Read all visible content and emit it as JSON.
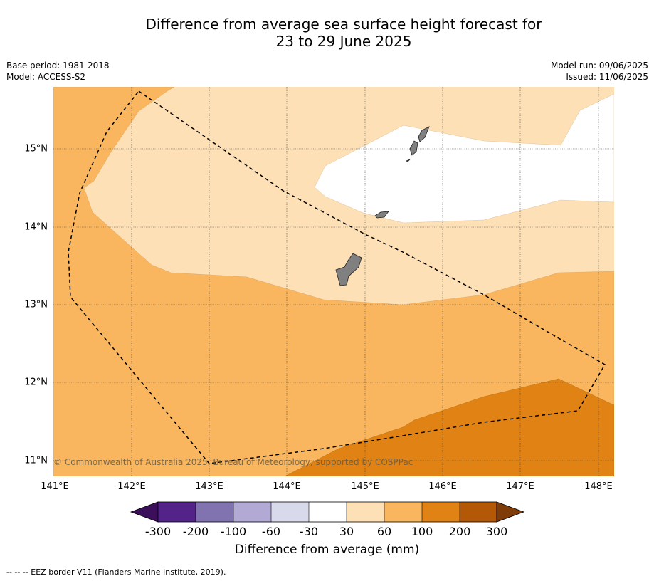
{
  "header": {
    "title_line1": "Difference from average sea surface height forecast for",
    "title_line2": "23 to 29 June 2025",
    "base_period": "Base period: 1981-2018",
    "model": "Model: ACCESS-S2",
    "model_run": "Model run: 09/06/2025",
    "issued": "Issued: 11/06/2025"
  },
  "map": {
    "lat_labels": [
      "15°N",
      "14°N",
      "13°N",
      "12°N",
      "11°N"
    ],
    "lon_labels": [
      "141°E",
      "142°E",
      "143°E",
      "144°E",
      "145°E",
      "146°E",
      "147°E",
      "148°E"
    ],
    "copyright": "© Commonwealth of Australia 2025, Bureau of Meteorology, supported by COSPPac",
    "land_color": "#808080",
    "eez_line_color": "#000000"
  },
  "colorbar": {
    "ticks": [
      "-300",
      "-200",
      "-100",
      "-60",
      "-30",
      "30",
      "60",
      "100",
      "200",
      "300"
    ],
    "colors": [
      "#3b0f5a",
      "#54238a",
      "#8073b0",
      "#b2aad4",
      "#d9d9ec",
      "#ffffff",
      "#fde0b6",
      "#f9b65e",
      "#e08214",
      "#b35806",
      "#7f3b08"
    ],
    "title": "Difference from average (mm)"
  },
  "footnote": "--  --  -- EEZ border V11 (Flanders Marine Institute, 2019)."
}
